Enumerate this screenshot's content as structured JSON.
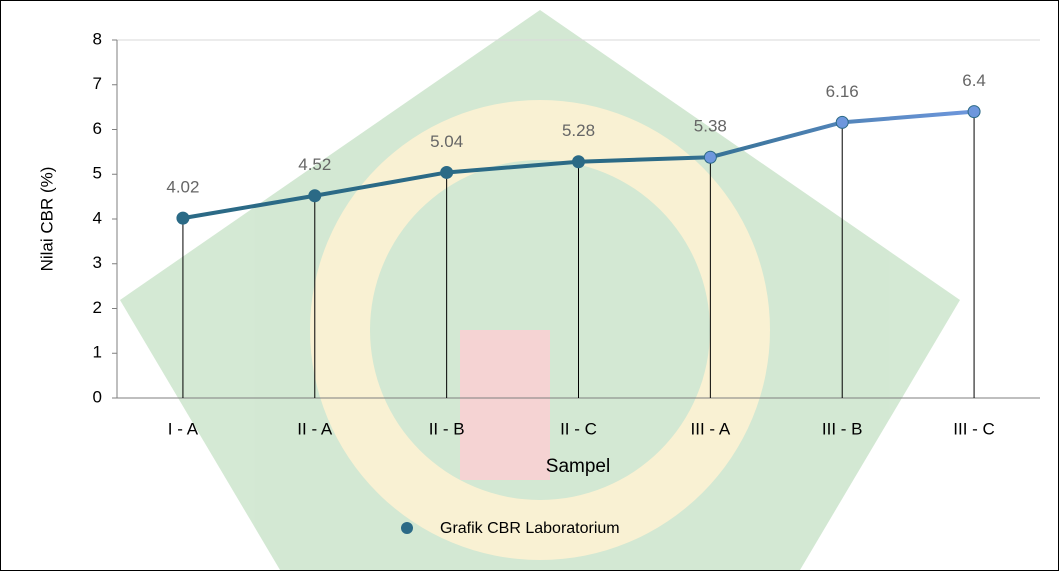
{
  "chart_data": {
    "type": "line",
    "x_label": "Sampel",
    "y_label": "Nilai CBR (%)",
    "categories": [
      "I - A",
      "II - A",
      "II - B",
      "II - C",
      "III - A",
      "III - B",
      "III - C"
    ],
    "series": [
      {
        "name": "Grafik CBR Laboratorium",
        "colors": [
          "#2b6a86",
          "#6e97dd"
        ],
        "values": [
          4.02,
          4.52,
          5.04,
          5.28,
          5.38,
          6.16,
          6.4
        ]
      }
    ],
    "ylim": [
      0,
      8
    ],
    "yticks": [
      0,
      1,
      2,
      3,
      4,
      5,
      6,
      7,
      8
    ],
    "drop_lines": true,
    "data_labels": true,
    "legend": "bottom"
  }
}
